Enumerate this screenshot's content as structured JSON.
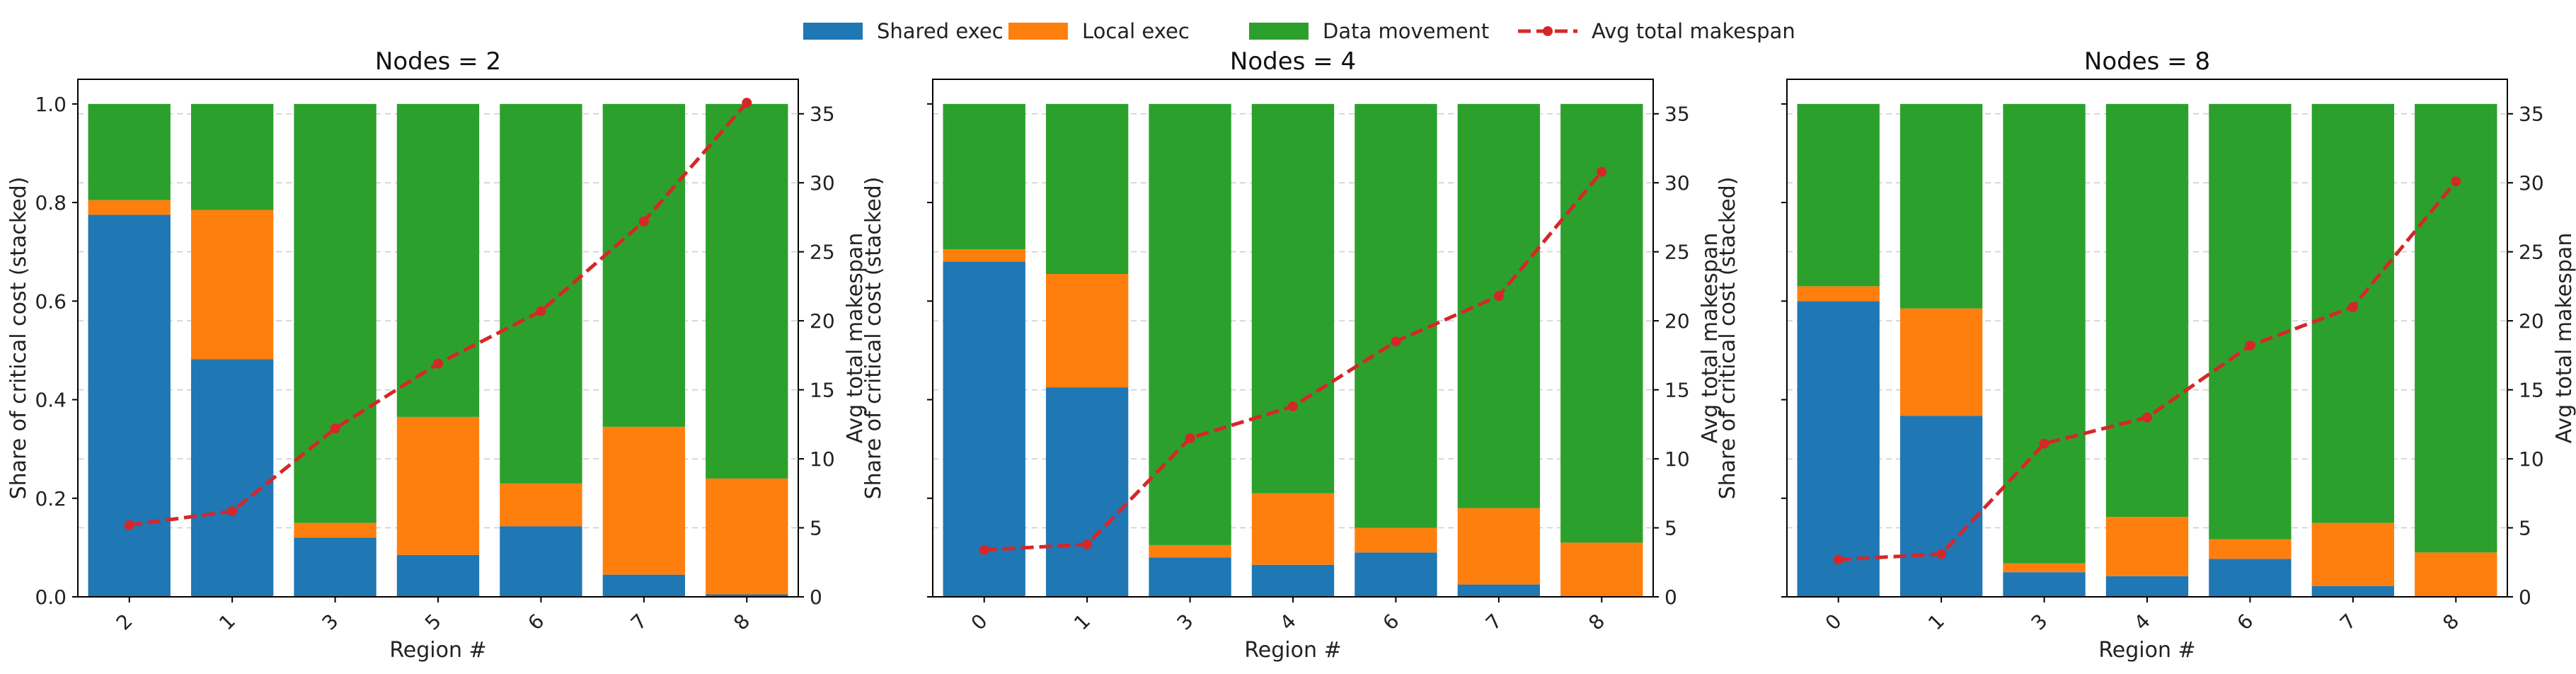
{
  "legend": {
    "items": [
      {
        "label": "Shared exec",
        "color": "#1f77b4",
        "kind": "patch"
      },
      {
        "label": "Local exec",
        "color": "#ff7f0e",
        "kind": "patch"
      },
      {
        "label": "Data movement",
        "color": "#2ca02c",
        "kind": "patch"
      },
      {
        "label": "Avg total makespan",
        "color": "#d62728",
        "kind": "line"
      }
    ],
    "placement": "top-center"
  },
  "chart_data": [
    {
      "type": "bar",
      "stacked": true,
      "title": "Nodes = 2",
      "xlabel": "Region #",
      "ylabel": "Share of critical cost (stacked)",
      "y2label": "Avg total makespan",
      "categories": [
        "2",
        "1",
        "3",
        "5",
        "6",
        "7",
        "8"
      ],
      "series": [
        {
          "name": "Shared exec",
          "values": [
            0.775,
            0.482,
            0.12,
            0.085,
            0.143,
            0.045,
            0.005
          ]
        },
        {
          "name": "Local exec",
          "values": [
            0.03,
            0.303,
            0.03,
            0.28,
            0.087,
            0.3,
            0.235
          ]
        },
        {
          "name": "Data movement",
          "values": [
            0.195,
            0.215,
            0.85,
            0.635,
            0.77,
            0.655,
            0.76
          ]
        },
        {
          "name": "Avg total makespan",
          "axis": "right",
          "values": [
            5.2,
            6.2,
            12.2,
            16.9,
            20.7,
            27.2,
            35.8
          ]
        }
      ],
      "ylim": [
        0,
        1.05
      ],
      "y2lim": [
        0,
        37.5
      ],
      "yticks": [
        "0.0",
        "0.2",
        "0.4",
        "0.6",
        "0.8",
        "1.0"
      ],
      "y2ticks": [
        "0",
        "5",
        "10",
        "15",
        "20",
        "25",
        "30",
        "35"
      ],
      "show_left_labels": true,
      "show_right_labels": true,
      "grid": true
    },
    {
      "type": "bar",
      "stacked": true,
      "title": "Nodes = 4",
      "xlabel": "Region #",
      "ylabel": "Share of critical cost (stacked)",
      "y2label": "Avg total makespan",
      "categories": [
        "0",
        "1",
        "3",
        "4",
        "6",
        "7",
        "8"
      ],
      "series": [
        {
          "name": "Shared exec",
          "values": [
            0.68,
            0.425,
            0.08,
            0.065,
            0.09,
            0.025,
            0.0
          ]
        },
        {
          "name": "Local exec",
          "values": [
            0.025,
            0.23,
            0.025,
            0.145,
            0.05,
            0.155,
            0.11
          ]
        },
        {
          "name": "Data movement",
          "values": [
            0.295,
            0.345,
            0.895,
            0.79,
            0.86,
            0.82,
            0.89
          ]
        },
        {
          "name": "Avg total makespan",
          "axis": "right",
          "values": [
            3.4,
            3.8,
            11.5,
            13.8,
            18.5,
            21.8,
            30.8
          ]
        }
      ],
      "ylim": [
        0,
        1.05
      ],
      "y2lim": [
        0,
        37.5
      ],
      "yticks": [
        "0.0",
        "0.2",
        "0.4",
        "0.6",
        "0.8",
        "1.0"
      ],
      "y2ticks": [
        "0",
        "5",
        "10",
        "15",
        "20",
        "25",
        "30",
        "35"
      ],
      "show_left_labels": false,
      "show_right_labels": true,
      "grid": true
    },
    {
      "type": "bar",
      "stacked": true,
      "title": "Nodes = 8",
      "xlabel": "Region #",
      "ylabel": "Share of critical cost (stacked)",
      "y2label": "Avg total makespan",
      "categories": [
        "0",
        "1",
        "3",
        "4",
        "6",
        "7",
        "8"
      ],
      "series": [
        {
          "name": "Shared exec",
          "values": [
            0.6,
            0.367,
            0.05,
            0.042,
            0.077,
            0.022,
            0.0
          ]
        },
        {
          "name": "Local exec",
          "values": [
            0.03,
            0.218,
            0.018,
            0.12,
            0.04,
            0.128,
            0.09
          ]
        },
        {
          "name": "Data movement",
          "values": [
            0.37,
            0.415,
            0.932,
            0.838,
            0.883,
            0.85,
            0.91
          ]
        },
        {
          "name": "Avg total makespan",
          "axis": "right",
          "values": [
            2.7,
            3.1,
            11.1,
            13.0,
            18.2,
            21.0,
            30.1
          ]
        }
      ],
      "ylim": [
        0,
        1.05
      ],
      "y2lim": [
        0,
        37.5
      ],
      "yticks": [
        "0.0",
        "0.2",
        "0.4",
        "0.6",
        "0.8",
        "1.0"
      ],
      "y2ticks": [
        "0",
        "5",
        "10",
        "15",
        "20",
        "25",
        "30",
        "35"
      ],
      "show_left_labels": false,
      "show_right_labels": true,
      "grid": true
    }
  ]
}
